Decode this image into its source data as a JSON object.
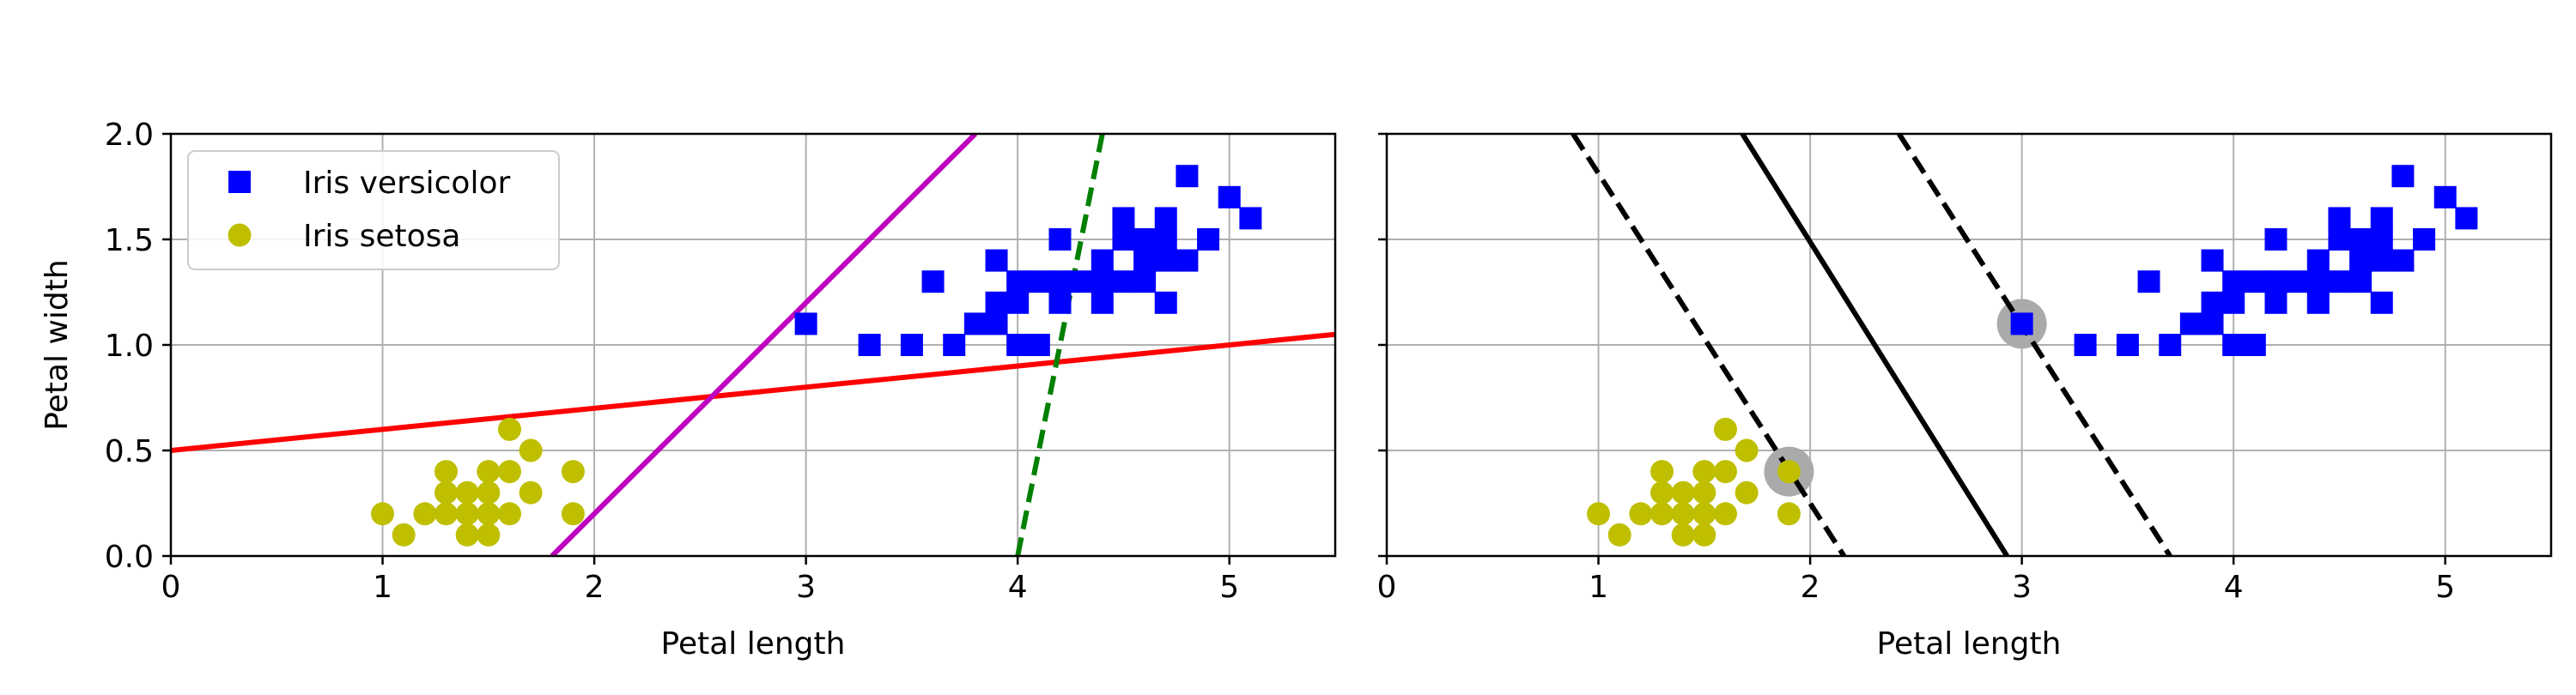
{
  "chart_data": [
    {
      "type": "scatter",
      "xlabel": "Petal length",
      "ylabel": "Petal width",
      "xlim": [
        0,
        5.5
      ],
      "ylim": [
        0,
        2.0
      ],
      "xticks": [
        "0",
        "1",
        "2",
        "3",
        "4",
        "5"
      ],
      "yticks": [
        "0.0",
        "0.5",
        "1.0",
        "1.5",
        "2.0"
      ],
      "grid": true,
      "legend": {
        "placement": "upper-left",
        "entries": [
          {
            "label": "Iris versicolor",
            "marker": "square",
            "color": "#0000ff"
          },
          {
            "label": "Iris setosa",
            "marker": "circle",
            "color": "#bfbf00"
          }
        ]
      },
      "series": [
        {
          "name": "Iris versicolor",
          "marker": "square",
          "color": "#0000ff",
          "points": [
            [
              3.0,
              1.1
            ],
            [
              3.3,
              1.0
            ],
            [
              3.5,
              1.0
            ],
            [
              3.6,
              1.3
            ],
            [
              3.7,
              1.0
            ],
            [
              3.8,
              1.1
            ],
            [
              3.9,
              1.1
            ],
            [
              3.9,
              1.2
            ],
            [
              3.9,
              1.4
            ],
            [
              4.0,
              1.0
            ],
            [
              4.0,
              1.2
            ],
            [
              4.0,
              1.3
            ],
            [
              4.1,
              1.0
            ],
            [
              4.1,
              1.3
            ],
            [
              4.2,
              1.2
            ],
            [
              4.2,
              1.3
            ],
            [
              4.2,
              1.5
            ],
            [
              4.3,
              1.3
            ],
            [
              4.4,
              1.2
            ],
            [
              4.4,
              1.3
            ],
            [
              4.4,
              1.4
            ],
            [
              4.5,
              1.3
            ],
            [
              4.5,
              1.5
            ],
            [
              4.5,
              1.6
            ],
            [
              4.6,
              1.3
            ],
            [
              4.6,
              1.4
            ],
            [
              4.6,
              1.5
            ],
            [
              4.7,
              1.2
            ],
            [
              4.7,
              1.4
            ],
            [
              4.7,
              1.5
            ],
            [
              4.7,
              1.6
            ],
            [
              4.8,
              1.4
            ],
            [
              4.8,
              1.8
            ],
            [
              4.9,
              1.5
            ],
            [
              5.0,
              1.7
            ],
            [
              5.1,
              1.6
            ]
          ]
        },
        {
          "name": "Iris setosa",
          "marker": "circle",
          "color": "#bfbf00",
          "points": [
            [
              1.0,
              0.2
            ],
            [
              1.1,
              0.1
            ],
            [
              1.2,
              0.2
            ],
            [
              1.3,
              0.2
            ],
            [
              1.3,
              0.3
            ],
            [
              1.3,
              0.4
            ],
            [
              1.4,
              0.1
            ],
            [
              1.4,
              0.2
            ],
            [
              1.4,
              0.3
            ],
            [
              1.5,
              0.1
            ],
            [
              1.5,
              0.2
            ],
            [
              1.5,
              0.3
            ],
            [
              1.5,
              0.4
            ],
            [
              1.6,
              0.2
            ],
            [
              1.6,
              0.4
            ],
            [
              1.6,
              0.6
            ],
            [
              1.7,
              0.3
            ],
            [
              1.7,
              0.5
            ],
            [
              1.9,
              0.2
            ],
            [
              1.9,
              0.4
            ]
          ]
        }
      ],
      "lines": [
        {
          "color": "#ff0000",
          "style": "solid",
          "from": [
            0,
            0.5
          ],
          "to": [
            5.5,
            1.05
          ]
        },
        {
          "color": "#bf00bf",
          "style": "solid",
          "from": [
            1.8,
            0.0
          ],
          "to": [
            3.8,
            2.0
          ]
        },
        {
          "color": "#008000",
          "style": "dashed",
          "from": [
            4.0,
            0.0
          ],
          "to": [
            4.4,
            2.0
          ]
        }
      ]
    },
    {
      "type": "scatter",
      "xlabel": "Petal length",
      "ylabel": "",
      "xlim": [
        0,
        5.5
      ],
      "ylim": [
        0,
        2.0
      ],
      "xticks": [
        "0",
        "1",
        "2",
        "3",
        "4",
        "5"
      ],
      "grid": true,
      "series": [
        {
          "name": "Iris versicolor",
          "marker": "square",
          "color": "#0000ff",
          "points": [
            [
              3.0,
              1.1
            ],
            [
              3.3,
              1.0
            ],
            [
              3.5,
              1.0
            ],
            [
              3.6,
              1.3
            ],
            [
              3.7,
              1.0
            ],
            [
              3.8,
              1.1
            ],
            [
              3.9,
              1.1
            ],
            [
              3.9,
              1.2
            ],
            [
              3.9,
              1.4
            ],
            [
              4.0,
              1.0
            ],
            [
              4.0,
              1.2
            ],
            [
              4.0,
              1.3
            ],
            [
              4.1,
              1.0
            ],
            [
              4.1,
              1.3
            ],
            [
              4.2,
              1.2
            ],
            [
              4.2,
              1.3
            ],
            [
              4.2,
              1.5
            ],
            [
              4.3,
              1.3
            ],
            [
              4.4,
              1.2
            ],
            [
              4.4,
              1.3
            ],
            [
              4.4,
              1.4
            ],
            [
              4.5,
              1.3
            ],
            [
              4.5,
              1.5
            ],
            [
              4.5,
              1.6
            ],
            [
              4.6,
              1.3
            ],
            [
              4.6,
              1.4
            ],
            [
              4.6,
              1.5
            ],
            [
              4.7,
              1.2
            ],
            [
              4.7,
              1.4
            ],
            [
              4.7,
              1.5
            ],
            [
              4.7,
              1.6
            ],
            [
              4.8,
              1.4
            ],
            [
              4.8,
              1.8
            ],
            [
              4.9,
              1.5
            ],
            [
              5.0,
              1.7
            ],
            [
              5.1,
              1.6
            ]
          ]
        },
        {
          "name": "Iris setosa",
          "marker": "circle",
          "color": "#bfbf00",
          "points": [
            [
              1.0,
              0.2
            ],
            [
              1.1,
              0.1
            ],
            [
              1.2,
              0.2
            ],
            [
              1.3,
              0.2
            ],
            [
              1.3,
              0.3
            ],
            [
              1.3,
              0.4
            ],
            [
              1.4,
              0.1
            ],
            [
              1.4,
              0.2
            ],
            [
              1.4,
              0.3
            ],
            [
              1.5,
              0.1
            ],
            [
              1.5,
              0.2
            ],
            [
              1.5,
              0.3
            ],
            [
              1.5,
              0.4
            ],
            [
              1.6,
              0.2
            ],
            [
              1.6,
              0.4
            ],
            [
              1.6,
              0.6
            ],
            [
              1.7,
              0.3
            ],
            [
              1.7,
              0.5
            ],
            [
              1.9,
              0.2
            ],
            [
              1.9,
              0.4
            ]
          ]
        }
      ],
      "support_vectors": [
        [
          1.9,
          0.4
        ],
        [
          3.0,
          1.1
        ]
      ],
      "lines": [
        {
          "color": "#000000",
          "style": "solid",
          "from": [
            1.68,
            2.0
          ],
          "to": [
            2.93,
            0.0
          ]
        },
        {
          "color": "#000000",
          "style": "dashed",
          "from": [
            0.88,
            2.0
          ],
          "to": [
            2.16,
            0.0
          ]
        },
        {
          "color": "#000000",
          "style": "dashed",
          "from": [
            2.42,
            2.0
          ],
          "to": [
            3.7,
            0.0
          ]
        }
      ]
    }
  ]
}
